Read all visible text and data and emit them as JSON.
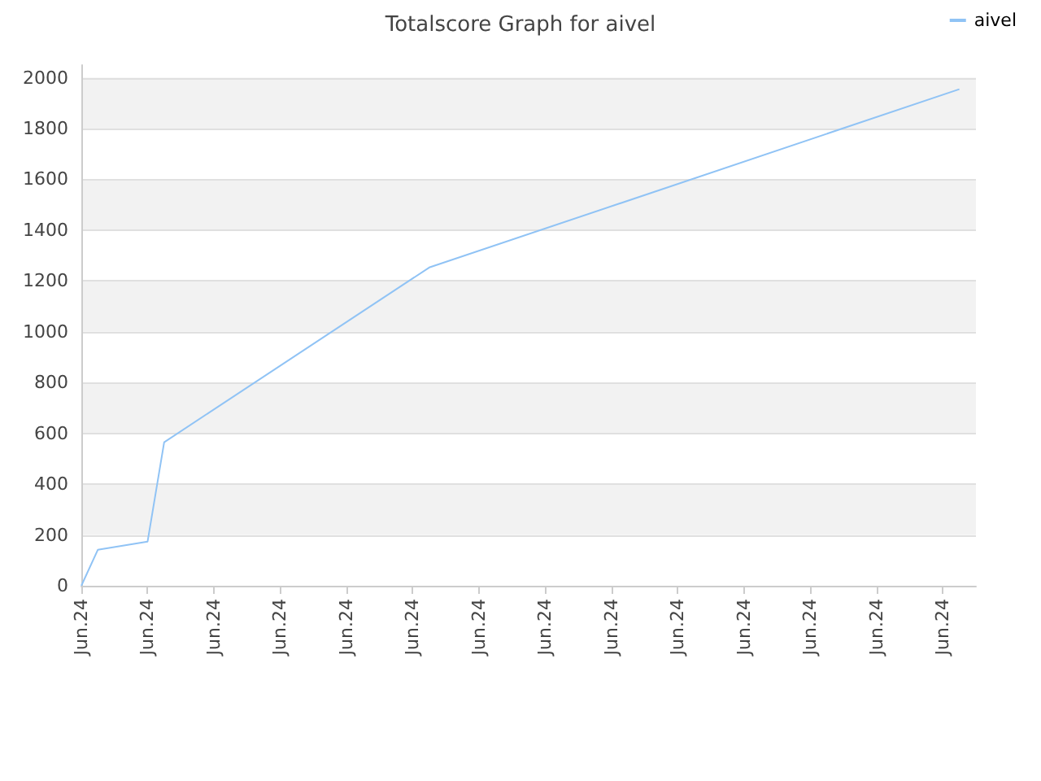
{
  "chart_data": {
    "type": "line",
    "title": "Totalscore Graph for aivel",
    "categories": [
      "Jun.24",
      null,
      null,
      null,
      "Jun.24",
      null,
      null,
      null,
      "Jun.24",
      null,
      null,
      null,
      "Jun.24",
      null,
      null,
      null,
      "Jun.24",
      null,
      null,
      null,
      "Jun.24",
      null,
      null,
      null,
      "Jun.24",
      null,
      null,
      null,
      "Jun.24",
      null,
      null,
      null,
      "Jun.24",
      null,
      null,
      null,
      "Jun.24",
      null,
      null,
      null,
      "Jun.24",
      null,
      null,
      null,
      "Jun.24",
      null,
      null,
      null,
      "Jun.24",
      null,
      null,
      null,
      "Jun.24",
      null,
      null
    ],
    "series": [
      {
        "name": "aivel",
        "color": "#90c3f5",
        "values": [
          0,
          142,
          null,
          null,
          174,
          565,
          null,
          null,
          null,
          null,
          null,
          null,
          null,
          null,
          null,
          null,
          null,
          null,
          null,
          null,
          null,
          1253,
          null,
          null,
          null,
          null,
          null,
          null,
          null,
          null,
          null,
          null,
          null,
          null,
          null,
          null,
          null,
          null,
          null,
          null,
          null,
          null,
          null,
          null,
          null,
          null,
          null,
          null,
          null,
          null,
          null,
          null,
          null,
          1955,
          null
        ]
      }
    ],
    "ylim": [
      0,
      2050
    ],
    "yticks": [
      0,
      200,
      400,
      600,
      800,
      1000,
      1200,
      1400,
      1600,
      1800,
      2000
    ],
    "grid": "y",
    "legend": "top right",
    "marker": "none",
    "line_style": "solid"
  }
}
